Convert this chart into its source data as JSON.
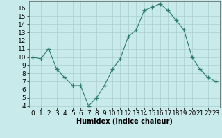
{
  "x": [
    0,
    1,
    2,
    3,
    4,
    5,
    6,
    7,
    8,
    9,
    10,
    11,
    12,
    13,
    14,
    15,
    16,
    17,
    18,
    19,
    20,
    21,
    22,
    23
  ],
  "y": [
    10,
    9.8,
    11,
    8.5,
    7.5,
    6.5,
    6.5,
    4.0,
    5.0,
    6.5,
    8.5,
    9.8,
    12.5,
    13.3,
    15.7,
    16.1,
    16.5,
    15.7,
    14.5,
    13.3,
    10.0,
    8.5,
    7.5,
    7.0
  ],
  "xlabel": "Humidex (Indice chaleur)",
  "ylim": [
    3.8,
    16.8
  ],
  "xlim": [
    -0.5,
    23.5
  ],
  "yticks": [
    4,
    5,
    6,
    7,
    8,
    9,
    10,
    11,
    12,
    13,
    14,
    15,
    16
  ],
  "xticks": [
    0,
    1,
    2,
    3,
    4,
    5,
    6,
    7,
    8,
    9,
    10,
    11,
    12,
    13,
    14,
    15,
    16,
    17,
    18,
    19,
    20,
    21,
    22,
    23
  ],
  "line_color": "#2d7a6e",
  "marker_color": "#2d7a6e",
  "bg_color": "#c8eaea",
  "grid_color": "#aacece",
  "xlabel_fontsize": 7,
  "tick_fontsize": 6.5
}
